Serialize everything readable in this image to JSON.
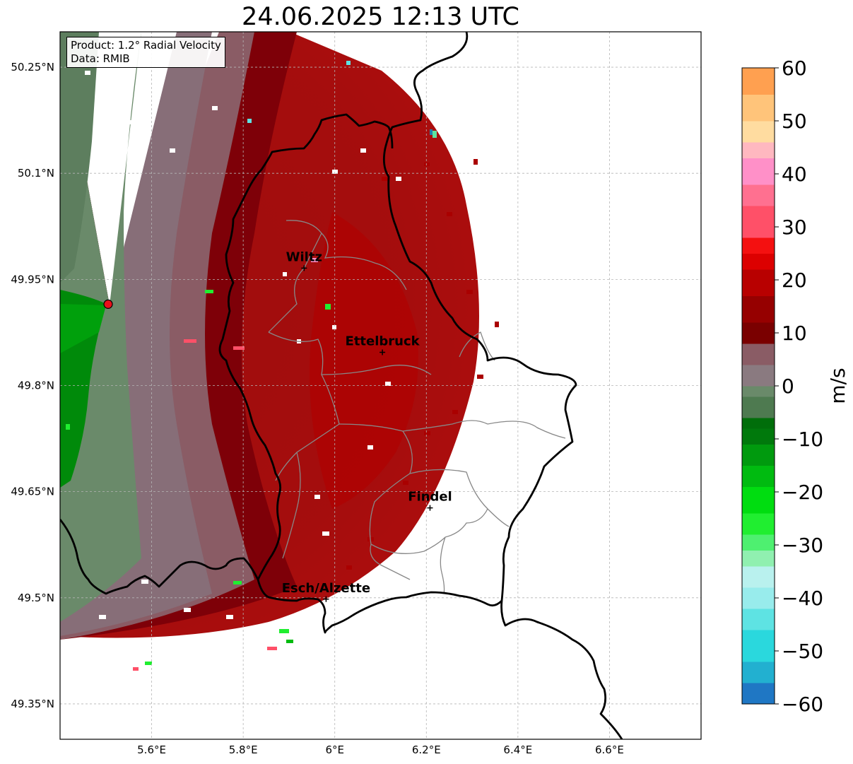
{
  "title": "24.06.2025 12:13 UTC",
  "info": {
    "product": "Product: 1.2° Radial Velocity",
    "data": "Data: RMIB"
  },
  "map": {
    "lon_range": [
      5.4,
      6.8
    ],
    "lat_range": [
      49.3,
      50.3
    ],
    "x_ticks": [
      {
        "value": 5.6,
        "label": "5.6°E"
      },
      {
        "value": 5.8,
        "label": "5.8°E"
      },
      {
        "value": 6.0,
        "label": "6°E"
      },
      {
        "value": 6.2,
        "label": "6.2°E"
      },
      {
        "value": 6.4,
        "label": "6.4°E"
      },
      {
        "value": 6.6,
        "label": "6.6°E"
      }
    ],
    "y_ticks": [
      {
        "value": 50.25,
        "label": "50.25°N"
      },
      {
        "value": 50.1,
        "label": "50.1°N"
      },
      {
        "value": 49.95,
        "label": "49.95°N"
      },
      {
        "value": 49.8,
        "label": "49.8°N"
      },
      {
        "value": 49.65,
        "label": "49.65°N"
      },
      {
        "value": 49.5,
        "label": "49.5°N"
      },
      {
        "value": 49.35,
        "label": "49.35°N"
      }
    ],
    "grid": true,
    "radar_site": {
      "lon": 5.505,
      "lat": 49.915,
      "color": "#e8101a"
    },
    "cities": [
      {
        "name": "Wiltz",
        "lon": 5.933,
        "lat": 49.966
      },
      {
        "name": "Ettelbruck",
        "lon": 6.104,
        "lat": 49.847
      },
      {
        "name": "Findel",
        "lon": 6.208,
        "lat": 49.627
      },
      {
        "name": "Esch/Alzette",
        "lon": 5.981,
        "lat": 49.498
      }
    ]
  },
  "colorbar": {
    "label": "m/s",
    "min": -60,
    "max": 60,
    "ticks": [
      {
        "value": 60,
        "label": "60"
      },
      {
        "value": 50,
        "label": "50"
      },
      {
        "value": 40,
        "label": "40"
      },
      {
        "value": 30,
        "label": "30"
      },
      {
        "value": 20,
        "label": "20"
      },
      {
        "value": 10,
        "label": "10"
      },
      {
        "value": 0,
        "label": "0"
      },
      {
        "value": -10,
        "label": "−10"
      },
      {
        "value": -20,
        "label": "−20"
      },
      {
        "value": -30,
        "label": "−30"
      },
      {
        "value": -40,
        "label": "−40"
      },
      {
        "value": -50,
        "label": "−50"
      },
      {
        "value": -60,
        "label": "−60"
      }
    ],
    "stops": [
      {
        "from": -60,
        "color": "#1f77c4"
      },
      {
        "from": -56,
        "color": "#22b0d0"
      },
      {
        "from": -52,
        "color": "#2ad8dd"
      },
      {
        "from": -46,
        "color": "#5ee3e3"
      },
      {
        "from": -42,
        "color": "#98ecec"
      },
      {
        "from": -38,
        "color": "#b9f1ee"
      },
      {
        "from": -34,
        "color": "#90f0b0"
      },
      {
        "from": -31,
        "color": "#4ef070"
      },
      {
        "from": -28,
        "color": "#20ee30"
      },
      {
        "from": -24,
        "color": "#00dd10"
      },
      {
        "from": -19,
        "color": "#00bb10"
      },
      {
        "from": -15,
        "color": "#009a0e"
      },
      {
        "from": -11,
        "color": "#00790c"
      },
      {
        "from": -8,
        "color": "#006e0a"
      },
      {
        "from": -6,
        "color": "#4e7a50"
      },
      {
        "from": -2,
        "color": "#6a8a6a"
      },
      {
        "from": 0,
        "color": "#8a7a80"
      },
      {
        "from": 4,
        "color": "#8a5c65"
      },
      {
        "from": 8,
        "color": "#7a0000"
      },
      {
        "from": 12,
        "color": "#960000"
      },
      {
        "from": 17,
        "color": "#b80000"
      },
      {
        "from": 22,
        "color": "#dc0000"
      },
      {
        "from": 25,
        "color": "#f41010"
      },
      {
        "from": 28,
        "color": "#ff5068"
      },
      {
        "from": 34,
        "color": "#ff7090"
      },
      {
        "from": 38,
        "color": "#ff90c8"
      },
      {
        "from": 43,
        "color": "#ffb8c0"
      },
      {
        "from": 46,
        "color": "#ffdca0"
      },
      {
        "from": 50,
        "color": "#ffc47a"
      },
      {
        "from": 55,
        "color": "#ffa050"
      },
      {
        "from": 60,
        "color": "#ffa050"
      }
    ]
  }
}
